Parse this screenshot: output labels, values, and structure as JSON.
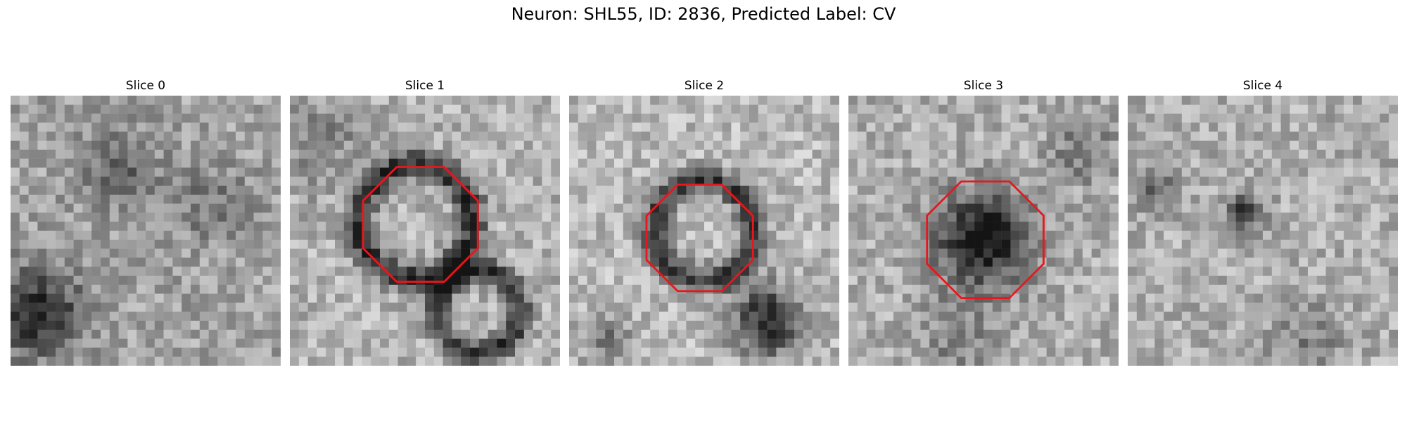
{
  "figure": {
    "title": "Neuron: SHL55, ID: 2836, Predicted Label: CV"
  },
  "panels": [
    {
      "title": "Slice 0",
      "has_contour": false
    },
    {
      "title": "Slice 1",
      "has_contour": true
    },
    {
      "title": "Slice 2",
      "has_contour": true
    },
    {
      "title": "Slice 3",
      "has_contour": true
    },
    {
      "title": "Slice 4",
      "has_contour": false
    }
  ],
  "colors": {
    "contour": "#e8171d",
    "background": "#ffffff"
  },
  "image_style": "grayscale pixelated microscopy patch"
}
